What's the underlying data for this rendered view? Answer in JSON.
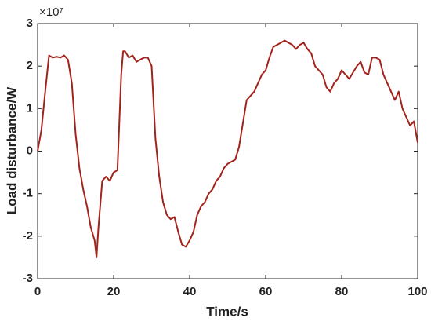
{
  "chart_data": {
    "type": "line",
    "x_label": "Time/s",
    "y_label": "Load disturbance/W",
    "y_multiplier": "×10⁷",
    "xlim": [
      0,
      100
    ],
    "xticks": [
      0,
      20,
      40,
      60,
      80,
      100
    ],
    "ylim": [
      -3,
      3
    ],
    "yticks": [
      -3,
      -2,
      -1,
      0,
      1,
      2,
      3
    ],
    "grid": false,
    "series": [
      {
        "color": "#a3231b",
        "x": [
          0,
          1,
          2,
          3,
          4,
          5,
          6,
          7,
          8,
          9,
          10,
          11,
          12,
          13,
          14,
          15,
          15.5,
          16,
          17,
          18,
          19,
          20,
          21,
          22,
          22.5,
          23,
          24,
          25,
          26,
          27,
          28,
          29,
          30,
          31,
          32,
          33,
          34,
          35,
          36,
          37,
          38,
          39,
          40,
          41,
          42,
          43,
          44,
          45,
          46,
          47,
          48,
          49,
          50,
          52,
          53,
          55,
          57,
          59,
          60,
          61,
          62,
          63,
          64,
          65,
          66,
          67,
          68,
          69,
          70,
          71,
          72,
          73,
          75,
          76,
          77,
          78,
          79,
          80,
          81,
          82,
          83,
          84,
          85,
          86,
          87,
          88,
          89,
          90,
          91,
          92,
          93,
          94,
          95,
          96,
          97,
          98,
          99,
          100
        ],
        "values": [
          0,
          0.5,
          1.4,
          2.25,
          2.2,
          2.22,
          2.2,
          2.25,
          2.15,
          1.6,
          0.4,
          -0.4,
          -0.9,
          -1.3,
          -1.8,
          -2.1,
          -2.5,
          -1.8,
          -0.7,
          -0.6,
          -0.7,
          -0.5,
          -0.45,
          1.8,
          2.35,
          2.35,
          2.2,
          2.25,
          2.1,
          2.15,
          2.2,
          2.2,
          2.0,
          0.3,
          -0.6,
          -1.2,
          -1.5,
          -1.6,
          -1.55,
          -1.9,
          -2.2,
          -2.25,
          -2.1,
          -1.9,
          -1.5,
          -1.3,
          -1.2,
          -1.0,
          -0.9,
          -0.7,
          -0.6,
          -0.4,
          -0.3,
          -0.2,
          0.1,
          1.2,
          1.4,
          1.8,
          1.9,
          2.2,
          2.45,
          2.5,
          2.55,
          2.6,
          2.55,
          2.5,
          2.4,
          2.5,
          2.55,
          2.4,
          2.3,
          2.0,
          1.8,
          1.5,
          1.4,
          1.6,
          1.7,
          1.9,
          1.8,
          1.7,
          1.85,
          2.0,
          2.1,
          1.85,
          1.8,
          2.2,
          2.2,
          2.15,
          1.8,
          1.6,
          1.4,
          1.2,
          1.4,
          1.0,
          0.8,
          0.6,
          0.7,
          0.2
        ]
      }
    ]
  }
}
